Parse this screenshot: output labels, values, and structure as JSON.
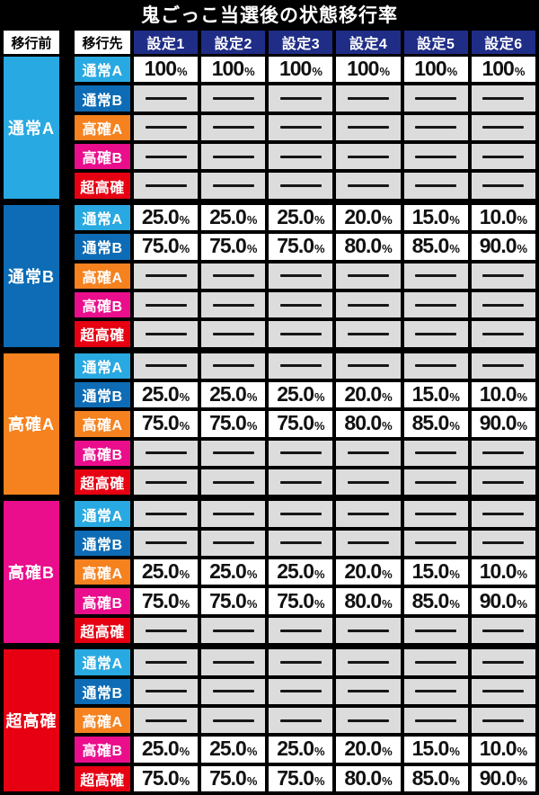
{
  "chart_data": {
    "type": "table",
    "title": "鬼ごっこ当選後の状態移行率",
    "header": {
      "before_label": "移行前",
      "dest_label": "移行先",
      "settings": [
        "設定1",
        "設定2",
        "設定3",
        "設定4",
        "設定5",
        "設定6"
      ]
    },
    "percent_sign": "%",
    "empty_cell_marker": "—",
    "destinations": [
      {
        "label": "通常A",
        "color": "#29a9e1"
      },
      {
        "label": "通常B",
        "color": "#0d6cb5"
      },
      {
        "label": "高確A",
        "color": "#f5821f"
      },
      {
        "label": "高確B",
        "color": "#ea0d8c"
      },
      {
        "label": "超高確",
        "color": "#e60012"
      }
    ],
    "groups": [
      {
        "from": "通常A",
        "color": "#29a9e1",
        "values": [
          [
            "100",
            "100",
            "100",
            "100",
            "100",
            "100"
          ],
          [
            null,
            null,
            null,
            null,
            null,
            null
          ],
          [
            null,
            null,
            null,
            null,
            null,
            null
          ],
          [
            null,
            null,
            null,
            null,
            null,
            null
          ],
          [
            null,
            null,
            null,
            null,
            null,
            null
          ]
        ]
      },
      {
        "from": "通常B",
        "color": "#0d6cb5",
        "values": [
          [
            "25.0",
            "25.0",
            "25.0",
            "20.0",
            "15.0",
            "10.0"
          ],
          [
            "75.0",
            "75.0",
            "75.0",
            "80.0",
            "85.0",
            "90.0"
          ],
          [
            null,
            null,
            null,
            null,
            null,
            null
          ],
          [
            null,
            null,
            null,
            null,
            null,
            null
          ],
          [
            null,
            null,
            null,
            null,
            null,
            null
          ]
        ]
      },
      {
        "from": "高確A",
        "color": "#f5821f",
        "values": [
          [
            null,
            null,
            null,
            null,
            null,
            null
          ],
          [
            "25.0",
            "25.0",
            "25.0",
            "20.0",
            "15.0",
            "10.0"
          ],
          [
            "75.0",
            "75.0",
            "75.0",
            "80.0",
            "85.0",
            "90.0"
          ],
          [
            null,
            null,
            null,
            null,
            null,
            null
          ],
          [
            null,
            null,
            null,
            null,
            null,
            null
          ]
        ]
      },
      {
        "from": "高確B",
        "color": "#ea0d8c",
        "values": [
          [
            null,
            null,
            null,
            null,
            null,
            null
          ],
          [
            null,
            null,
            null,
            null,
            null,
            null
          ],
          [
            "25.0",
            "25.0",
            "25.0",
            "20.0",
            "15.0",
            "10.0"
          ],
          [
            "75.0",
            "75.0",
            "75.0",
            "80.0",
            "85.0",
            "90.0"
          ],
          [
            null,
            null,
            null,
            null,
            null,
            null
          ]
        ]
      },
      {
        "from": "超高確",
        "color": "#e60012",
        "values": [
          [
            null,
            null,
            null,
            null,
            null,
            null
          ],
          [
            null,
            null,
            null,
            null,
            null,
            null
          ],
          [
            null,
            null,
            null,
            null,
            null,
            null
          ],
          [
            "25.0",
            "25.0",
            "25.0",
            "20.0",
            "15.0",
            "10.0"
          ],
          [
            "75.0",
            "75.0",
            "75.0",
            "80.0",
            "85.0",
            "90.0"
          ]
        ]
      }
    ]
  },
  "colors": {
    "header_setting_bg": "#1f2d87",
    "value_cell_bg": "#ffffff",
    "empty_cell_bg": "#dcdcdc",
    "table_border": "#000000",
    "title_text": "#ffffff"
  }
}
